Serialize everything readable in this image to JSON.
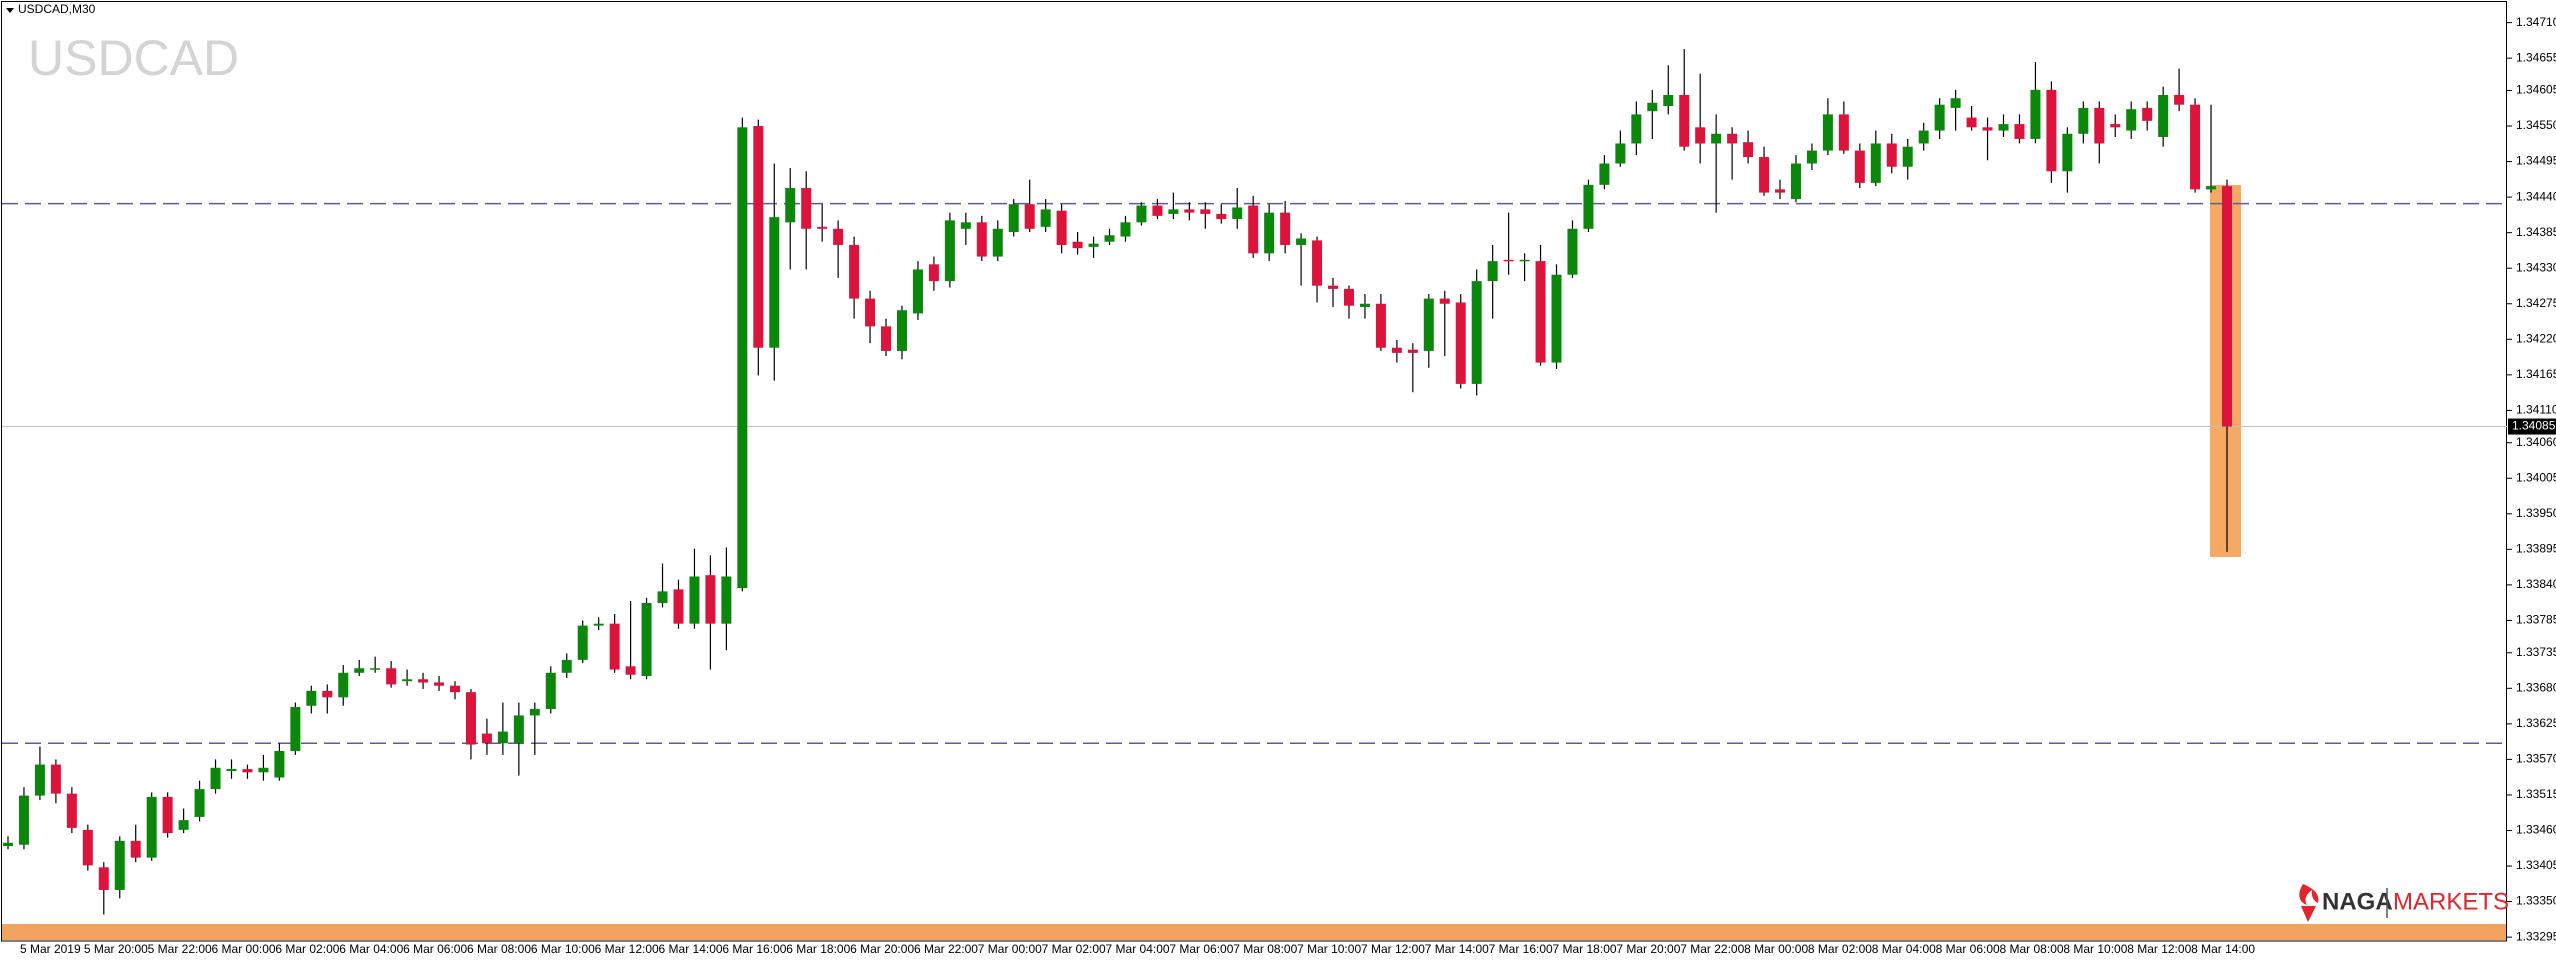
{
  "chart_data": {
    "type": "candlestick",
    "title": "USDCAD,M30",
    "watermark": "USDCAD",
    "up_color": "#0b870b",
    "down_color": "#dc143c",
    "wick_color": "#000000",
    "grid": false,
    "ylim": [
      1.33289,
      1.34745
    ],
    "yticks": [
      {
        "value": 1.3471,
        "label": "1.34710"
      },
      1.34655,
      1.34605,
      {
        "value": 1.3455,
        "label": "1.34550"
      },
      1.34495,
      {
        "value": 1.3444,
        "label": "1.34440"
      },
      1.34385,
      {
        "value": 1.3433,
        "label": "1.34330"
      },
      1.34275,
      {
        "value": 1.3422,
        "label": "1.34220"
      },
      1.34165,
      {
        "value": 1.3411,
        "label": "1.34110"
      },
      {
        "value": 1.3406,
        "label": "1.34060"
      },
      1.34005,
      {
        "value": 1.3395,
        "label": "1.33950"
      },
      1.33895,
      {
        "value": 1.3384,
        "label": "1.33840"
      },
      1.33785,
      1.33735,
      {
        "value": 1.3368,
        "label": "1.33680"
      },
      1.33625,
      {
        "value": 1.3357,
        "label": "1.33570"
      },
      1.33515,
      {
        "value": 1.3346,
        "label": "1.33460"
      },
      1.33405,
      {
        "value": 1.3335,
        "label": "1.33350"
      },
      1.33295
    ],
    "hlines": [
      1.3443,
      1.33595
    ],
    "hline_color": "#5b5b9e",
    "current_line_color": "#c0c0c0",
    "categories": [
      null,
      "5 Mar 2019",
      null,
      null,
      null,
      "5 Mar 20:00",
      null,
      null,
      null,
      "5 Mar 22:00",
      null,
      null,
      null,
      "6 Mar 00:00",
      null,
      null,
      null,
      "6 Mar 02:00",
      null,
      null,
      null,
      "6 Mar 04:00",
      null,
      null,
      null,
      "6 Mar 06:00",
      null,
      null,
      null,
      "6 Mar 08:00",
      null,
      null,
      null,
      "6 Mar 10:00",
      null,
      null,
      null,
      "6 Mar 12:00",
      null,
      null,
      null,
      "6 Mar 14:00",
      null,
      null,
      null,
      "6 Mar 16:00",
      null,
      null,
      null,
      "6 Mar 18:00",
      null,
      null,
      null,
      "6 Mar 20:00",
      null,
      null,
      null,
      "6 Mar 22:00",
      null,
      null,
      null,
      "7 Mar 00:00",
      null,
      null,
      null,
      "7 Mar 02:00",
      null,
      null,
      null,
      "7 Mar 04:00",
      null,
      null,
      null,
      "7 Mar 06:00",
      null,
      null,
      null,
      "7 Mar 08:00",
      null,
      null,
      null,
      "7 Mar 10:00",
      null,
      null,
      null,
      "7 Mar 12:00",
      null,
      null,
      null,
      "7 Mar 14:00",
      null,
      null,
      null,
      "7 Mar 16:00",
      null,
      null,
      null,
      "7 Mar 18:00",
      null,
      null,
      null,
      "7 Mar 20:00",
      null,
      null,
      null,
      "7 Mar 22:00",
      null,
      null,
      null,
      "8 Mar 00:00",
      null,
      null,
      null,
      "8 Mar 02:00",
      null,
      null,
      null,
      "8 Mar 04:00",
      null,
      null,
      null,
      "8 Mar 06:00",
      null,
      null,
      null,
      "8 Mar 08:00",
      null,
      null,
      null,
      "8 Mar 10:00",
      null,
      null,
      null,
      "8 Mar 12:00",
      null,
      null,
      null,
      "8 Mar 14:00",
      null,
      null
    ],
    "open": [
      1.33436,
      1.33438,
      1.33514,
      1.33562,
      1.33517,
      1.33461,
      1.33403,
      1.33368,
      1.33444,
      1.33418,
      1.33512,
      1.33461,
      1.33481,
      1.33524,
      1.33552,
      1.33555,
      1.3355,
      1.33542,
      1.33583,
      1.33653,
      1.33676,
      1.33666,
      1.33704,
      1.33709,
      1.33711,
      1.33691,
      1.33694,
      1.33689,
      1.33684,
      1.33674,
      1.3361,
      1.33595,
      1.33595,
      1.33638,
      1.33648,
      1.33704,
      1.33724,
      1.33777,
      1.3378,
      1.33714,
      1.33699,
      1.33812,
      1.33833,
      1.3378,
      1.33855,
      1.3378,
      1.33835,
      1.3455,
      1.34207,
      1.34401,
      1.34454,
      1.34394,
      1.34391,
      1.34366,
      1.34283,
      1.3424,
      1.34202,
      1.3426,
      1.34336,
      1.3431,
      1.34391,
      1.34401,
      1.34348,
      1.34386,
      1.34429,
      1.34394,
      1.34419,
      1.34371,
      1.34363,
      1.34371,
      1.34379,
      1.34401,
      1.34427,
      1.34414,
      1.34421,
      1.34421,
      1.34414,
      1.34406,
      1.34427,
      1.34353,
      1.34416,
      1.34366,
      1.34373,
      1.34303,
      1.34298,
      1.3427,
      1.34275,
      1.34207,
      1.34204,
      1.34202,
      1.34283,
      1.34277,
      1.34151,
      1.3431,
      1.34343,
      1.34341,
      1.34341,
      1.34184,
      1.3432,
      1.34391,
      1.34459,
      1.34492,
      1.34523,
      1.34573,
      1.34581,
      1.34598,
      1.34548,
      1.34523,
      1.34538,
      1.34525,
      1.34502,
      1.34452,
      1.34437,
      1.34492,
      1.34512,
      1.34568,
      1.34512,
      1.34462,
      1.34523,
      1.34487,
      1.34523,
      1.34543,
      1.34578,
      1.34563,
      1.34548,
      1.34543,
      1.34553,
      1.3453,
      1.34606,
      1.3448,
      1.34538,
      1.34578,
      1.34553,
      1.34543,
      1.34578,
      1.34533,
      1.34598,
      1.34583,
      1.34452,
      1.34457
    ],
    "high": [
      1.33451,
      1.33527,
      1.3359,
      1.3357,
      1.33527,
      1.33469,
      1.33411,
      1.33451,
      1.33469,
      1.33519,
      1.33519,
      1.33494,
      1.33537,
      1.3357,
      1.3357,
      1.33562,
      1.33577,
      1.33595,
      1.33658,
      1.33684,
      1.33686,
      1.33716,
      1.33724,
      1.33729,
      1.33722,
      1.33709,
      1.33704,
      1.33699,
      1.33691,
      1.33679,
      1.33633,
      1.33658,
      1.33658,
      1.33658,
      1.33714,
      1.33734,
      1.33785,
      1.3379,
      1.33795,
      1.33815,
      1.3382,
      1.33873,
      1.33848,
      1.33896,
      1.33886,
      1.33898,
      1.34563,
      1.3456,
      1.34492,
      1.34485,
      1.3448,
      1.34429,
      1.34404,
      1.34379,
      1.34295,
      1.34252,
      1.34272,
      1.34341,
      1.34348,
      1.34416,
      1.34416,
      1.34411,
      1.34404,
      1.34437,
      1.34467,
      1.34437,
      1.34429,
      1.34386,
      1.34379,
      1.34391,
      1.34411,
      1.34432,
      1.34437,
      1.34447,
      1.34432,
      1.34432,
      1.34429,
      1.34454,
      1.34442,
      1.34429,
      1.34434,
      1.34384,
      1.34379,
      1.34315,
      1.34303,
      1.3429,
      1.3429,
      1.34219,
      1.34214,
      1.3429,
      1.34295,
      1.3429,
      1.34328,
      1.34366,
      1.34416,
      1.34353,
      1.34366,
      1.34336,
      1.34404,
      1.34467,
      1.34505,
      1.34543,
      1.34588,
      1.34606,
      1.34644,
      1.34669,
      1.34631,
      1.34568,
      1.34548,
      1.34543,
      1.34518,
      1.34467,
      1.34505,
      1.34523,
      1.34593,
      1.34588,
      1.34523,
      1.34543,
      1.34538,
      1.3453,
      1.34555,
      1.34593,
      1.34606,
      1.34581,
      1.34563,
      1.34568,
      1.34568,
      1.34649,
      1.34619,
      1.34548,
      1.34588,
      1.34588,
      1.34568,
      1.34588,
      1.34588,
      1.34611,
      1.34639,
      1.34593,
      1.34583,
      1.34467
    ],
    "low": [
      1.33431,
      1.33431,
      1.33507,
      1.33502,
      1.33456,
      1.33398,
      1.3333,
      1.33355,
      1.33411,
      1.33413,
      1.33449,
      1.33456,
      1.33474,
      1.33517,
      1.3354,
      1.3354,
      1.33537,
      1.33537,
      1.33577,
      1.33641,
      1.33641,
      1.33653,
      1.33699,
      1.33704,
      1.33681,
      1.33684,
      1.33679,
      1.33676,
      1.33663,
      1.3357,
      1.33577,
      1.33577,
      1.33545,
      1.33577,
      1.33641,
      1.33696,
      1.33719,
      1.3377,
      1.33704,
      1.33694,
      1.33694,
      1.33805,
      1.33772,
      1.33772,
      1.33709,
      1.33739,
      1.3383,
      1.34164,
      1.34156,
      1.34328,
      1.34328,
      1.34371,
      1.34315,
      1.34252,
      1.34214,
      1.34194,
      1.34189,
      1.3425,
      1.34295,
      1.343,
      1.34366,
      1.34341,
      1.34341,
      1.34379,
      1.34386,
      1.34386,
      1.34353,
      1.34351,
      1.34346,
      1.34366,
      1.34371,
      1.34396,
      1.34406,
      1.34406,
      1.34404,
      1.34391,
      1.34399,
      1.34391,
      1.34346,
      1.34341,
      1.34353,
      1.34303,
      1.34277,
      1.3427,
      1.34252,
      1.34252,
      1.34202,
      1.34184,
      1.34138,
      1.34176,
      1.34194,
      1.34144,
      1.34133,
      1.34252,
      1.3432,
      1.3431,
      1.34179,
      1.34174,
      1.34315,
      1.34386,
      1.34452,
      1.34487,
      1.34505,
      1.3453,
      1.34568,
      1.34512,
      1.34492,
      1.34416,
      1.34467,
      1.34492,
      1.34442,
      1.34437,
      1.34432,
      1.34482,
      1.34505,
      1.34507,
      1.34454,
      1.34457,
      1.34477,
      1.34467,
      1.34512,
      1.3453,
      1.34543,
      1.34543,
      1.34497,
      1.34533,
      1.34523,
      1.34523,
      1.34462,
      1.34447,
      1.34523,
      1.34492,
      1.34533,
      1.3453,
      1.34543,
      1.34518,
      1.34573,
      1.34447,
      1.34447,
      1.33891
    ],
    "close": [
      1.33441,
      1.33514,
      1.33562,
      1.33517,
      1.33464,
      1.33406,
      1.33368,
      1.33444,
      1.33418,
      1.33512,
      1.33456,
      1.33476,
      1.33524,
      1.33557,
      1.33555,
      1.3355,
      1.33557,
      1.33583,
      1.33651,
      1.33676,
      1.33666,
      1.33704,
      1.33711,
      1.33711,
      1.33686,
      1.33694,
      1.33689,
      1.33684,
      1.33674,
      1.33593,
      1.33595,
      1.33613,
      1.33638,
      1.33648,
      1.33704,
      1.33724,
      1.33777,
      1.3378,
      1.33709,
      1.33701,
      1.33812,
      1.3383,
      1.3378,
      1.33853,
      1.3378,
      1.33853,
      1.34548,
      1.34207,
      1.34409,
      1.34454,
      1.34391,
      1.34391,
      1.34366,
      1.34283,
      1.3424,
      1.34202,
      1.34265,
      1.34328,
      1.3431,
      1.34404,
      1.34401,
      1.34348,
      1.34391,
      1.34429,
      1.34391,
      1.34421,
      1.34366,
      1.34361,
      1.34368,
      1.34381,
      1.34401,
      1.34427,
      1.34411,
      1.34421,
      1.34416,
      1.34414,
      1.34406,
      1.34424,
      1.34353,
      1.34416,
      1.34366,
      1.34376,
      1.34303,
      1.34298,
      1.34272,
      1.34275,
      1.34207,
      1.34199,
      1.34199,
      1.34283,
      1.34275,
      1.34151,
      1.3431,
      1.34341,
      1.34341,
      1.34343,
      1.34184,
      1.3432,
      1.34391,
      1.34459,
      1.34492,
      1.34523,
      1.34568,
      1.34586,
      1.34598,
      1.34518,
      1.34523,
      1.34538,
      1.34523,
      1.34502,
      1.34447,
      1.34447,
      1.34492,
      1.34512,
      1.34568,
      1.34512,
      1.34462,
      1.34523,
      1.34487,
      1.34518,
      1.34543,
      1.34583,
      1.34593,
      1.34548,
      1.34543,
      1.34553,
      1.3453,
      1.34606,
      1.3448,
      1.34538,
      1.34578,
      1.34523,
      1.34548,
      1.34576,
      1.34558,
      1.34598,
      1.34583,
      1.34452,
      1.34457,
      1.34085
    ]
  },
  "logo": {
    "name": "NAGA",
    "suffix": "MARKETS"
  }
}
